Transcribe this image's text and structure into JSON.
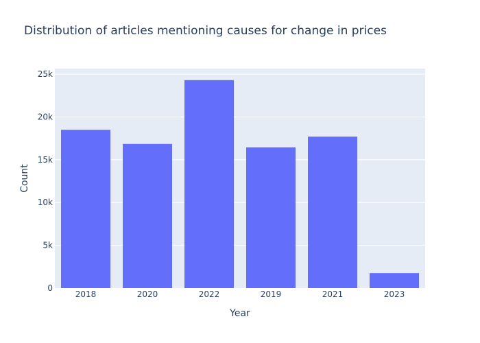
{
  "chart_data": {
    "type": "bar",
    "title": "Distribution of articles mentioning causes for change in prices",
    "xlabel": "Year",
    "ylabel": "Count",
    "categories": [
      "2018",
      "2020",
      "2022",
      "2019",
      "2021",
      "2023"
    ],
    "values": [
      18500,
      16850,
      24300,
      16450,
      17700,
      1750
    ],
    "ylim": [
      0,
      25650
    ],
    "yticks": [
      0,
      5000,
      10000,
      15000,
      20000,
      25000
    ],
    "ytick_labels": [
      "0",
      "5k",
      "10k",
      "15k",
      "20k",
      "25k"
    ],
    "grid": true,
    "legend": "none",
    "colors": {
      "bar": "#636efa",
      "plot_background": "#e5ecf6",
      "grid": "#ffffff",
      "text": "#2a3f5f"
    }
  }
}
